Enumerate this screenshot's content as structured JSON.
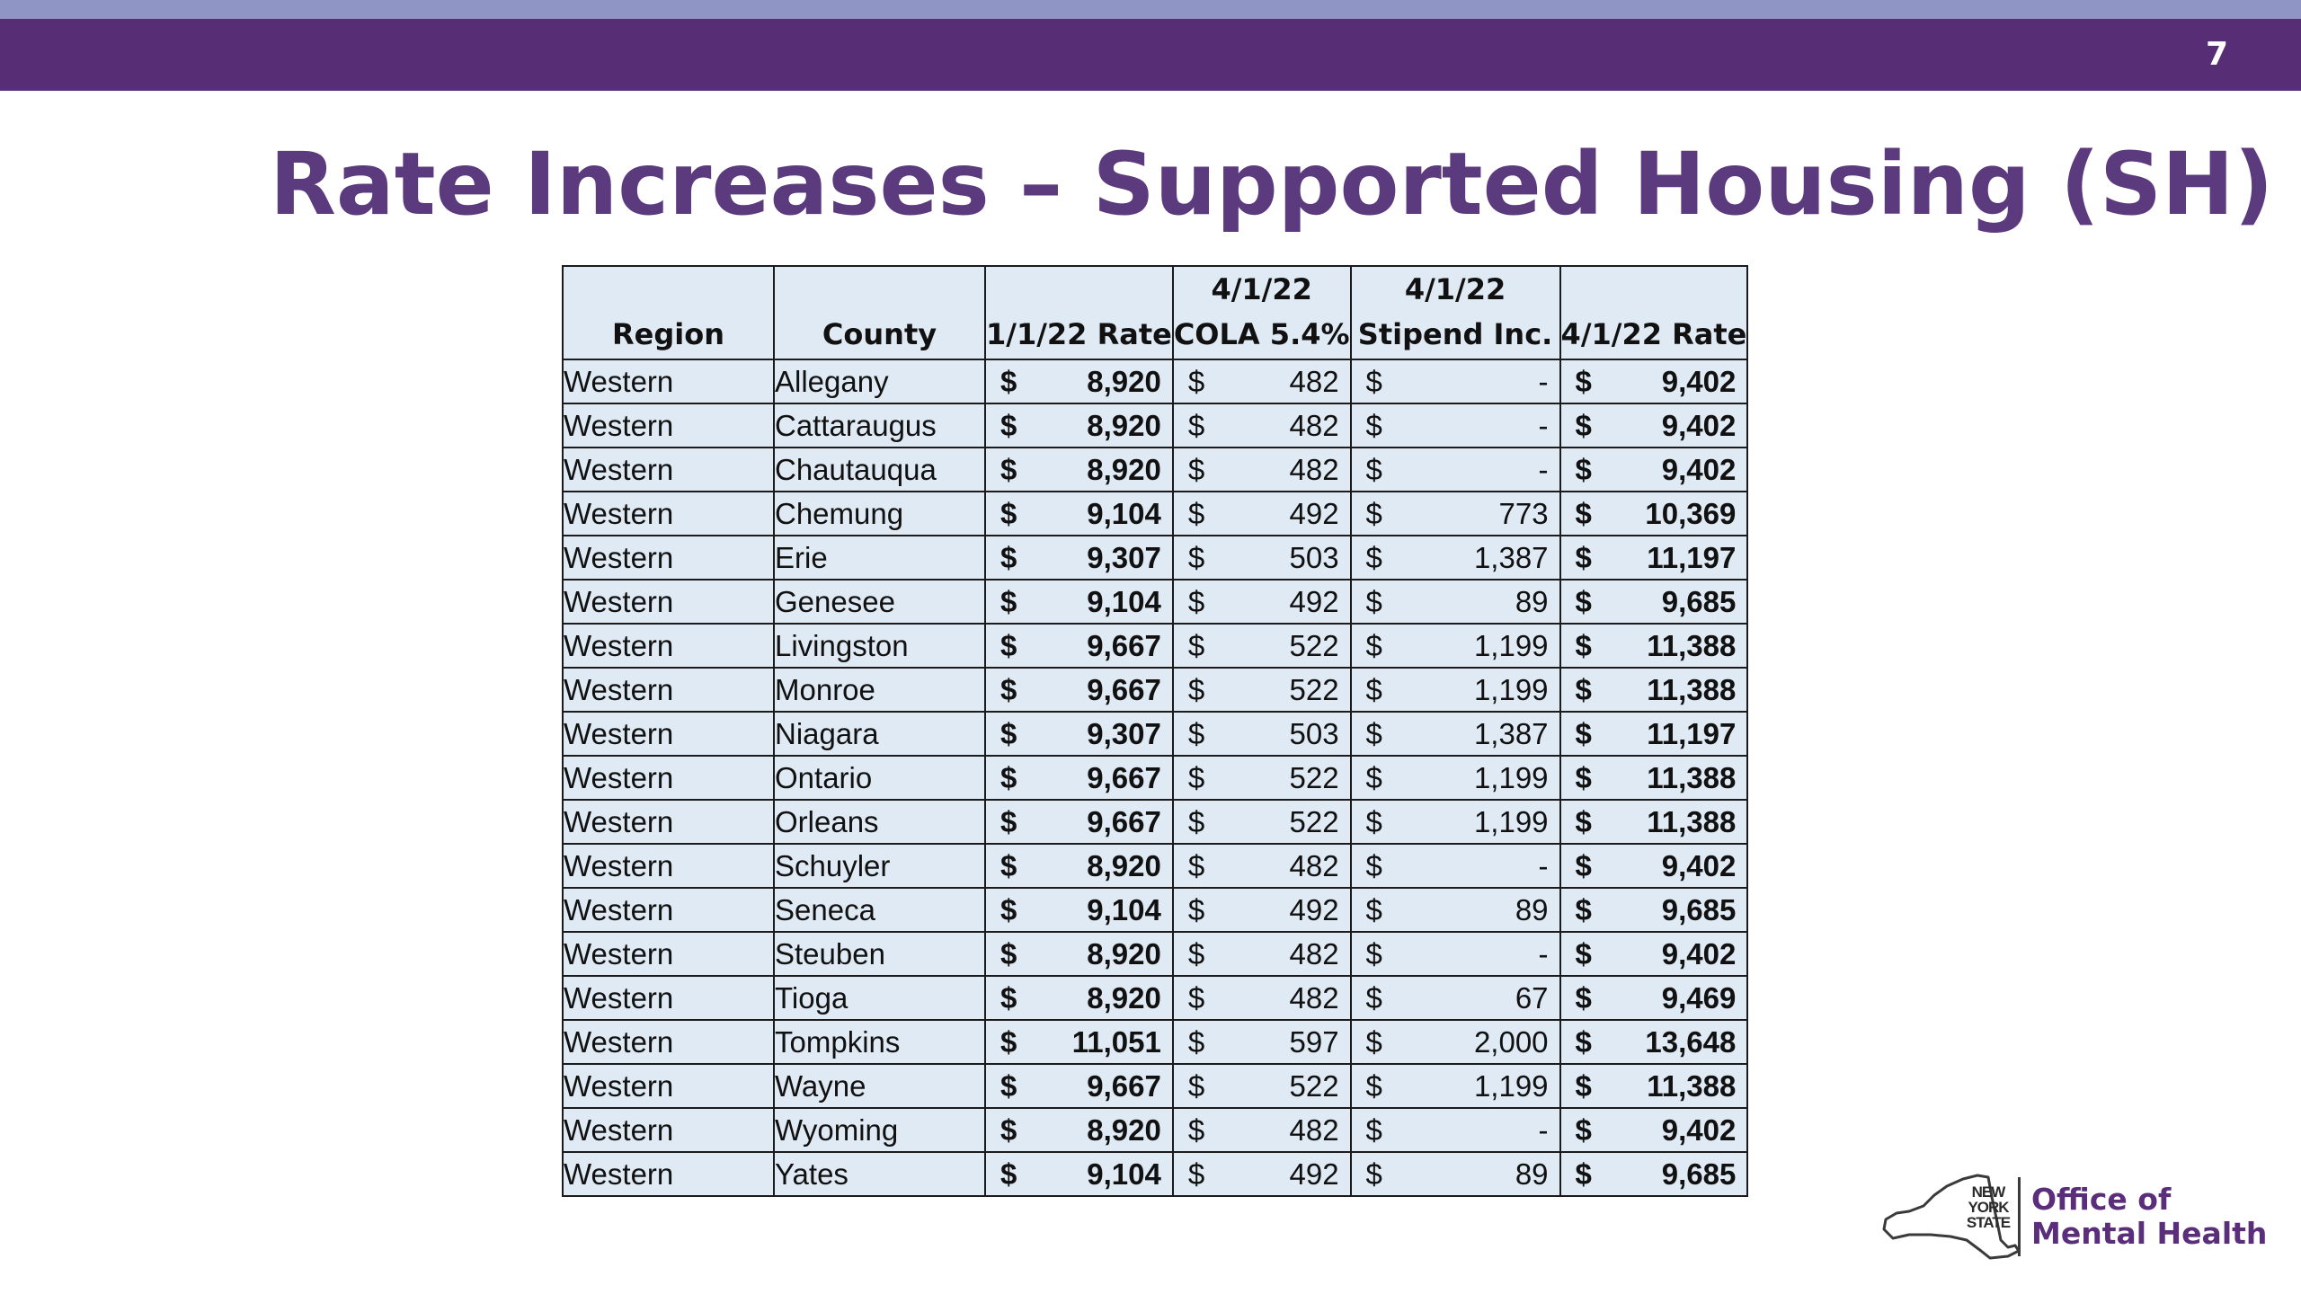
{
  "slide": {
    "number": "7",
    "title": "Rate Increases – Supported Housing (SH)"
  },
  "table": {
    "headers": [
      {
        "line1": "",
        "line2": "Region"
      },
      {
        "line1": "",
        "line2": "County"
      },
      {
        "line1": "",
        "line2": "1/1/22 Rate"
      },
      {
        "line1": "4/1/22",
        "line2": "COLA 5.4%"
      },
      {
        "line1": "4/1/22",
        "line2": "Stipend Inc."
      },
      {
        "line1": "",
        "line2": "4/1/22 Rate"
      }
    ],
    "currency_symbol": "$",
    "rows": [
      {
        "region": "Western",
        "county": "Allegany",
        "rate_jan": "8,920",
        "cola": "482",
        "stipend": "-",
        "rate_apr": "9,402"
      },
      {
        "region": "Western",
        "county": "Cattaraugus",
        "rate_jan": "8,920",
        "cola": "482",
        "stipend": "-",
        "rate_apr": "9,402"
      },
      {
        "region": "Western",
        "county": "Chautauqua",
        "rate_jan": "8,920",
        "cola": "482",
        "stipend": "-",
        "rate_apr": "9,402"
      },
      {
        "region": "Western",
        "county": "Chemung",
        "rate_jan": "9,104",
        "cola": "492",
        "stipend": "773",
        "rate_apr": "10,369"
      },
      {
        "region": "Western",
        "county": "Erie",
        "rate_jan": "9,307",
        "cola": "503",
        "stipend": "1,387",
        "rate_apr": "11,197"
      },
      {
        "region": "Western",
        "county": "Genesee",
        "rate_jan": "9,104",
        "cola": "492",
        "stipend": "89",
        "rate_apr": "9,685"
      },
      {
        "region": "Western",
        "county": "Livingston",
        "rate_jan": "9,667",
        "cola": "522",
        "stipend": "1,199",
        "rate_apr": "11,388"
      },
      {
        "region": "Western",
        "county": "Monroe",
        "rate_jan": "9,667",
        "cola": "522",
        "stipend": "1,199",
        "rate_apr": "11,388"
      },
      {
        "region": "Western",
        "county": "Niagara",
        "rate_jan": "9,307",
        "cola": "503",
        "stipend": "1,387",
        "rate_apr": "11,197"
      },
      {
        "region": "Western",
        "county": "Ontario",
        "rate_jan": "9,667",
        "cola": "522",
        "stipend": "1,199",
        "rate_apr": "11,388"
      },
      {
        "region": "Western",
        "county": "Orleans",
        "rate_jan": "9,667",
        "cola": "522",
        "stipend": "1,199",
        "rate_apr": "11,388"
      },
      {
        "region": "Western",
        "county": "Schuyler",
        "rate_jan": "8,920",
        "cola": "482",
        "stipend": "-",
        "rate_apr": "9,402"
      },
      {
        "region": "Western",
        "county": "Seneca",
        "rate_jan": "9,104",
        "cola": "492",
        "stipend": "89",
        "rate_apr": "9,685"
      },
      {
        "region": "Western",
        "county": "Steuben",
        "rate_jan": "8,920",
        "cola": "482",
        "stipend": "-",
        "rate_apr": "9,402"
      },
      {
        "region": "Western",
        "county": "Tioga",
        "rate_jan": "8,920",
        "cola": "482",
        "stipend": "67",
        "rate_apr": "9,469"
      },
      {
        "region": "Western",
        "county": "Tompkins",
        "rate_jan": "11,051",
        "cola": "597",
        "stipend": "2,000",
        "rate_apr": "13,648"
      },
      {
        "region": "Western",
        "county": "Wayne",
        "rate_jan": "9,667",
        "cola": "522",
        "stipend": "1,199",
        "rate_apr": "11,388"
      },
      {
        "region": "Western",
        "county": "Wyoming",
        "rate_jan": "8,920",
        "cola": "482",
        "stipend": "-",
        "rate_apr": "9,402"
      },
      {
        "region": "Western",
        "county": "Yates",
        "rate_jan": "9,104",
        "cola": "492",
        "stipend": "89",
        "rate_apr": "9,685"
      }
    ]
  },
  "logo": {
    "state_line1": "NEW",
    "state_line2": "YORK",
    "state_line3": "STATE",
    "agency_line1": "Office of",
    "agency_line2": "Mental Health"
  },
  "colors": {
    "header_bar": "#572d75",
    "top_strip": "#8f95c4",
    "title": "#5b3a7e",
    "table_fill": "#dfeaf4"
  }
}
